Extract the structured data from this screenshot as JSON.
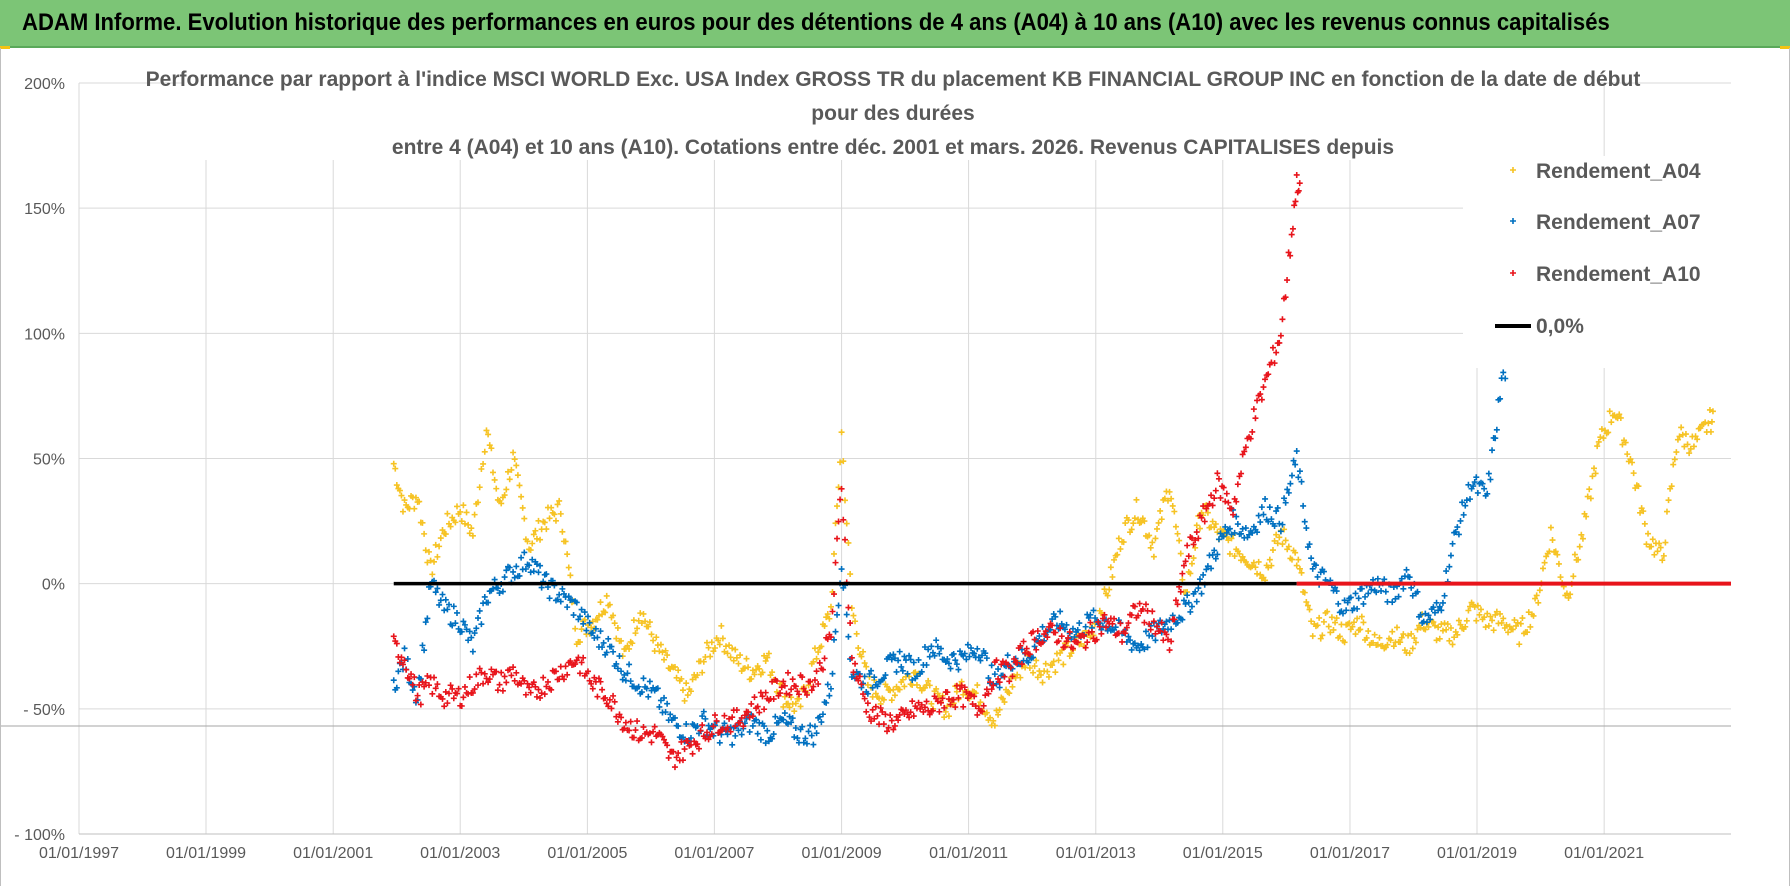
{
  "header": {
    "title": "ADAM Informe. Evolution historique des performances en euros pour des détentions de 4 ans (A04) à 10 ans (A10) avec les revenus connus capitalisés"
  },
  "chart_data": {
    "type": "scatter",
    "title_lines": [
      "Performance par rapport à l'indice MSCI WORLD Exc. USA Index GROSS TR  du placement KB FINANCIAL GROUP INC en fonction de la date de début",
      "pour des durées",
      "entre 4 (A04) et 10 ans (A10).  Cotations entre déc. 2001 et mars. 2026. Revenus CAPITALISES depuis"
    ],
    "ylim": [
      -100,
      200
    ],
    "xlim": [
      "1997-01-01",
      "2022-12-31"
    ],
    "y_ticks": [
      {
        "value": 200,
        "label": "200%"
      },
      {
        "value": 150,
        "label": "150%"
      },
      {
        "value": 100,
        "label": "100%"
      },
      {
        "value": 50,
        "label": "50%"
      },
      {
        "value": 0,
        "label": "0%"
      },
      {
        "value": -50,
        "label": "- 50%"
      },
      {
        "value": -100,
        "label": "- 100%"
      }
    ],
    "x_ticks": [
      {
        "value": "1997-01-01",
        "label": "01/01/1997"
      },
      {
        "value": "1999-01-01",
        "label": "01/01/1999"
      },
      {
        "value": "2001-01-01",
        "label": "01/01/2001"
      },
      {
        "value": "2003-01-01",
        "label": "01/01/2003"
      },
      {
        "value": "2005-01-01",
        "label": "01/01/2005"
      },
      {
        "value": "2007-01-01",
        "label": "01/01/2007"
      },
      {
        "value": "2009-01-01",
        "label": "01/01/2009"
      },
      {
        "value": "2011-01-01",
        "label": "01/01/2011"
      },
      {
        "value": "2013-01-01",
        "label": "01/01/2013"
      },
      {
        "value": "2015-01-01",
        "label": "01/01/2015"
      },
      {
        "value": "2017-01-01",
        "label": "01/01/2017"
      },
      {
        "value": "2019-01-01",
        "label": "01/01/2019"
      },
      {
        "value": "2021-01-01",
        "label": "01/01/2021"
      }
    ],
    "grid": true,
    "legend_position": "right",
    "series": [
      {
        "name": "Rendement_A04",
        "color": "#f6c324",
        "marker": "plus",
        "x": [
          "2001-12-15",
          "2002-02-15",
          "2002-05-01",
          "2002-07-15",
          "2002-10-01",
          "2003-01-01",
          "2003-03-15",
          "2003-06-01",
          "2003-08-15",
          "2003-11-01",
          "2004-02-01",
          "2004-05-01",
          "2004-08-01",
          "2004-11-01",
          "2005-02-01",
          "2005-05-01",
          "2005-08-01",
          "2005-11-01",
          "2006-02-01",
          "2006-05-01",
          "2006-08-01",
          "2006-11-01",
          "2007-02-01",
          "2007-05-01",
          "2007-08-01",
          "2007-11-01",
          "2008-02-01",
          "2008-05-01",
          "2008-08-01",
          "2008-11-01",
          "2009-01-01",
          "2009-03-01",
          "2009-06-01",
          "2009-09-01",
          "2009-12-01",
          "2010-03-01",
          "2010-06-01",
          "2010-09-01",
          "2010-12-01",
          "2011-03-01",
          "2011-06-01",
          "2011-09-01",
          "2011-12-01",
          "2012-03-01",
          "2012-06-01",
          "2012-09-01",
          "2012-12-01",
          "2013-03-01",
          "2013-06-01",
          "2013-09-01",
          "2013-12-01",
          "2014-03-01",
          "2014-06-01",
          "2014-09-01",
          "2014-12-01",
          "2015-03-01",
          "2015-06-01",
          "2015-09-01",
          "2015-12-01",
          "2016-03-01",
          "2016-06-01",
          "2016-09-01",
          "2016-12-01",
          "2017-03-01",
          "2017-06-01",
          "2017-09-01",
          "2017-12-01",
          "2018-03-01",
          "2018-06-01",
          "2018-09-01",
          "2018-12-01",
          "2019-03-01",
          "2019-06-01",
          "2019-09-01",
          "2019-12-01",
          "2020-03-01",
          "2020-06-01",
          "2020-09-01",
          "2020-12-01",
          "2021-03-01",
          "2021-06-01",
          "2021-09-01",
          "2021-12-01",
          "2022-03-01",
          "2022-06-01",
          "2022-09-01"
        ],
        "values": [
          48,
          30,
          35,
          5,
          22,
          30,
          20,
          62,
          30,
          50,
          15,
          25,
          30,
          -20,
          -15,
          -5,
          -30,
          -10,
          -25,
          -35,
          -45,
          -30,
          -20,
          -30,
          -35,
          -30,
          -45,
          -50,
          -30,
          -10,
          60,
          -10,
          -40,
          -45,
          -40,
          -35,
          -45,
          -50,
          -40,
          -45,
          -55,
          -40,
          -30,
          -35,
          -30,
          -25,
          -20,
          -5,
          20,
          30,
          15,
          40,
          -5,
          30,
          20,
          15,
          10,
          5,
          20,
          10,
          -20,
          -15,
          -20,
          -15,
          -25,
          -20,
          -25,
          -15,
          -20,
          -20,
          -10,
          -15,
          -15,
          -20,
          -10,
          20,
          -5,
          20,
          55,
          70,
          50,
          20,
          10,
          60,
          55,
          65
        ]
      },
      {
        "name": "Rendement_A07",
        "color": "#0070c0",
        "marker": "plus",
        "x": [
          "2001-12-15",
          "2002-02-15",
          "2002-05-01",
          "2002-07-15",
          "2002-10-01",
          "2003-01-01",
          "2003-03-15",
          "2003-06-01",
          "2003-08-15",
          "2003-11-01",
          "2004-02-01",
          "2004-05-01",
          "2004-08-01",
          "2004-11-01",
          "2005-02-01",
          "2005-05-01",
          "2005-08-01",
          "2005-11-01",
          "2006-02-01",
          "2006-05-01",
          "2006-08-01",
          "2006-11-01",
          "2007-02-01",
          "2007-05-01",
          "2007-08-01",
          "2007-11-01",
          "2008-02-01",
          "2008-05-01",
          "2008-08-01",
          "2008-11-01",
          "2009-01-01",
          "2009-03-01",
          "2009-06-01",
          "2009-09-01",
          "2009-12-01",
          "2010-03-01",
          "2010-06-01",
          "2010-09-01",
          "2010-12-01",
          "2011-03-01",
          "2011-06-01",
          "2011-09-01",
          "2011-12-01",
          "2012-03-01",
          "2012-06-01",
          "2012-09-01",
          "2012-12-01",
          "2013-03-01",
          "2013-06-01",
          "2013-09-01",
          "2013-12-01",
          "2014-03-01",
          "2014-06-01",
          "2014-09-01",
          "2014-12-01",
          "2015-03-01",
          "2015-06-01",
          "2015-09-01",
          "2015-12-01",
          "2016-03-01",
          "2016-06-01",
          "2016-09-01",
          "2016-12-01",
          "2017-03-01",
          "2017-06-01",
          "2017-09-01",
          "2017-12-01",
          "2018-03-01",
          "2018-06-01",
          "2018-09-01",
          "2018-12-01",
          "2019-03-01",
          "2019-06-01"
        ],
        "values": [
          -40,
          -30,
          -45,
          0,
          -10,
          -15,
          -25,
          -5,
          0,
          5,
          10,
          0,
          -5,
          -10,
          -20,
          -25,
          -35,
          -40,
          -45,
          -55,
          -60,
          -55,
          -60,
          -60,
          -55,
          -60,
          -55,
          -60,
          -60,
          -40,
          10,
          -35,
          -40,
          -35,
          -30,
          -35,
          -25,
          -30,
          -30,
          -25,
          -40,
          -30,
          -30,
          -20,
          -15,
          -20,
          -15,
          -15,
          -20,
          -25,
          -20,
          -15,
          -10,
          0,
          15,
          25,
          20,
          30,
          25,
          50,
          5,
          0,
          -10,
          -5,
          0,
          -5,
          5,
          -15,
          -10,
          20,
          40,
          35,
          85
        ]
      },
      {
        "name": "Rendement_A10",
        "color": "#e8141b",
        "marker": "plus",
        "x": [
          "2001-12-15",
          "2002-02-15",
          "2002-05-01",
          "2002-07-15",
          "2002-10-01",
          "2003-01-01",
          "2003-03-15",
          "2003-06-01",
          "2003-08-15",
          "2003-11-01",
          "2004-02-01",
          "2004-05-01",
          "2004-08-01",
          "2004-11-01",
          "2005-02-01",
          "2005-05-01",
          "2005-08-01",
          "2005-11-01",
          "2006-02-01",
          "2006-05-01",
          "2006-08-01",
          "2006-11-01",
          "2007-02-01",
          "2007-05-01",
          "2007-08-01",
          "2007-11-01",
          "2008-02-01",
          "2008-05-01",
          "2008-08-01",
          "2008-11-01",
          "2009-01-01",
          "2009-03-01",
          "2009-06-01",
          "2009-09-01",
          "2009-12-01",
          "2010-03-01",
          "2010-06-01",
          "2010-09-01",
          "2010-12-01",
          "2011-03-01",
          "2011-06-01",
          "2011-09-01",
          "2011-12-01",
          "2012-03-01",
          "2012-06-01",
          "2012-09-01",
          "2012-12-01",
          "2013-03-01",
          "2013-06-01",
          "2013-09-01",
          "2013-12-01",
          "2014-03-01",
          "2014-06-01",
          "2014-09-01",
          "2014-12-01",
          "2015-03-01",
          "2015-06-01",
          "2015-09-01",
          "2015-12-01",
          "2016-02-01",
          "2016-03-01"
        ],
        "values": [
          -25,
          -30,
          -45,
          -40,
          -45,
          -45,
          -40,
          -35,
          -40,
          -35,
          -45,
          -40,
          -35,
          -30,
          -40,
          -45,
          -55,
          -60,
          -60,
          -70,
          -65,
          -60,
          -55,
          -55,
          -50,
          -45,
          -40,
          -40,
          -40,
          -20,
          40,
          -30,
          -50,
          -55,
          -55,
          -50,
          -50,
          -45,
          -45,
          -50,
          -35,
          -35,
          -25,
          -20,
          -20,
          -25,
          -20,
          -15,
          -20,
          -10,
          -15,
          -25,
          10,
          25,
          40,
          30,
          60,
          80,
          100,
          140,
          160
        ]
      },
      {
        "name": "0,0%",
        "color": "#000000",
        "marker": "line",
        "x": [
          "2001-12-15",
          "2022-12-31"
        ],
        "values": [
          0,
          0
        ]
      }
    ]
  }
}
